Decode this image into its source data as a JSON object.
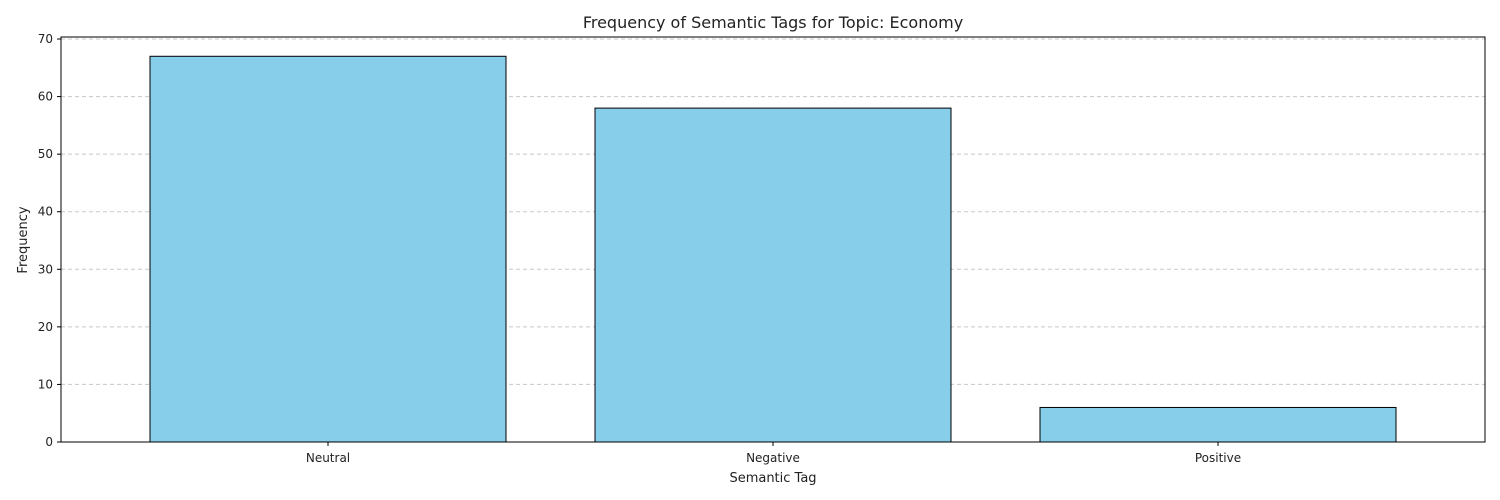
{
  "chart_data": {
    "type": "bar",
    "title": "Frequency of Semantic Tags for Topic: Economy",
    "xlabel": "Semantic Tag",
    "ylabel": "Frequency",
    "categories": [
      "Neutral",
      "Negative",
      "Positive"
    ],
    "values": [
      67,
      58,
      6
    ],
    "ylim": [
      0,
      70.35
    ],
    "yticks": [
      0,
      10,
      20,
      30,
      40,
      50,
      60,
      70
    ],
    "grid": {
      "y": true,
      "style": "dashed"
    },
    "colors": {
      "bar_fill": "#87ceeb",
      "bar_edge": "#000000",
      "grid": "#c8c8c8"
    }
  }
}
